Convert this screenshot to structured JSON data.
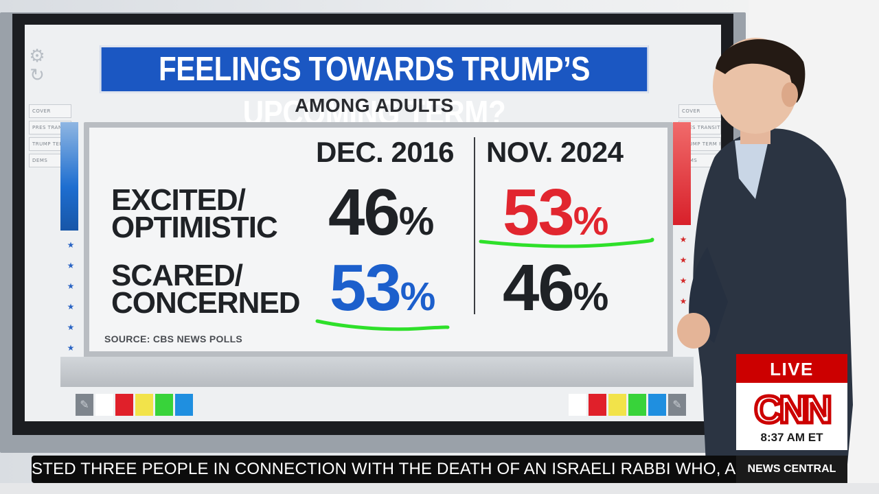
{
  "graphic": {
    "headline": "FEELINGS TOWARDS TRUMP’S UPCOMING TERM?",
    "subheadline": "AMONG ADULTS",
    "columns": [
      "DEC. 2016",
      "NOV. 2024"
    ],
    "rows": [
      {
        "label_line1": "EXCITED/",
        "label_line2": "OPTIMISTIC",
        "values": [
          "46",
          "53"
        ]
      },
      {
        "label_line1": "SCARED/",
        "label_line2": "CONCERNED",
        "values": [
          "53",
          "46"
        ]
      }
    ],
    "percent_sign": "%",
    "source": "SOURCE: CBS NEWS POLLS",
    "highlight_color": "#2ee02a",
    "red": "#e1262f",
    "blue": "#1c5fcc"
  },
  "screen_ui": {
    "left_tabs": [
      "COVER",
      "PRES TRANSITION",
      "TRUMP TERM FEELINGS",
      "DEMS"
    ],
    "right_tabs": [
      "COVER",
      "PRES TRANSITION",
      "TRUMP TERM FEELINGS",
      "DEMS"
    ],
    "gear_icon": "gear-icon",
    "left_swatches": [
      "#ffffff",
      "#e0202a",
      "#f2e34a",
      "#38d33a",
      "#1f8fe0"
    ],
    "right_swatches": [
      "#ffffff",
      "#e0202a",
      "#f2e34a",
      "#38d33a",
      "#1f8fe0"
    ],
    "star": "★"
  },
  "broadcast": {
    "live_label": "LIVE",
    "network_logo_text": "CNN",
    "time": "8:37 AM ET",
    "ticker_text": "STED THREE PEOPLE IN CONNECTION WITH THE DEATH OF AN ISRAELI RABBI WHO, AC",
    "program_name": "NEWS CENTRAL"
  }
}
